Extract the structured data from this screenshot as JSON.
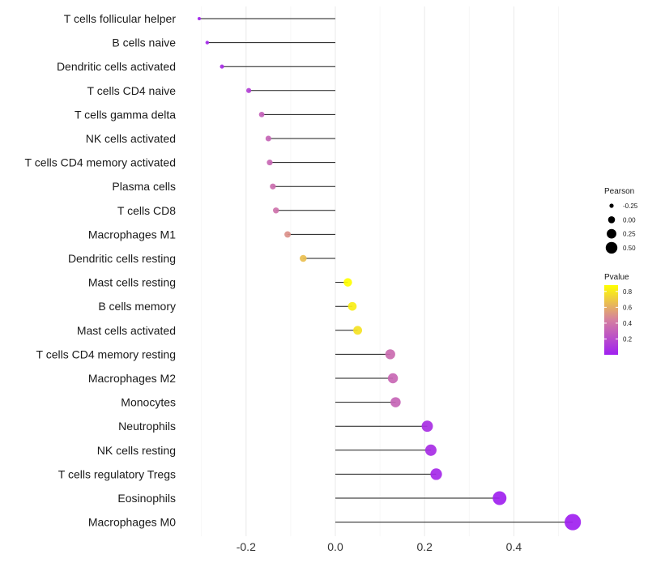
{
  "chart_data": {
    "type": "lollipop",
    "title": "",
    "xlabel": "",
    "ylabel": "",
    "xlim": [
      -0.31,
      0.535
    ],
    "x_ticks": [
      -0.2,
      0.0,
      0.2,
      0.4
    ],
    "x_tick_labels": [
      "-0.2",
      "0.0",
      "0.2",
      "0.4"
    ],
    "grid": true,
    "categories": [
      "T cells follicular helper",
      "B cells naive",
      "Dendritic cells activated",
      "T cells CD4 naive",
      "T cells gamma delta",
      "NK cells activated",
      "T cells CD4 memory activated",
      "Plasma cells",
      "T cells CD8",
      "Macrophages M1",
      "Dendritic cells resting",
      "Mast cells resting",
      "B cells memory",
      "Mast cells activated",
      "T cells CD4 memory resting",
      "Macrophages M2",
      "Monocytes",
      "Neutrophils",
      "NK cells resting",
      "T cells regulatory  Tregs ",
      "Eosinophils",
      "Macrophages M0"
    ],
    "pearson": [
      -0.305,
      -0.287,
      -0.254,
      -0.194,
      -0.165,
      -0.15,
      -0.147,
      -0.14,
      -0.133,
      -0.107,
      -0.072,
      0.028,
      0.038,
      0.05,
      0.123,
      0.129,
      0.135,
      0.206,
      0.214,
      0.226,
      0.368,
      0.532
    ],
    "pvalue": [
      0.02,
      0.04,
      0.06,
      0.15,
      0.3,
      0.32,
      0.33,
      0.36,
      0.38,
      0.5,
      0.66,
      0.88,
      0.82,
      0.78,
      0.35,
      0.33,
      0.32,
      0.07,
      0.06,
      0.04,
      0.005,
      0.001
    ],
    "legend": {
      "size_title": "Pearson",
      "size_labels": [
        "-0.25",
        "0.00",
        "0.25",
        "0.50"
      ],
      "size_values": [
        -0.25,
        0.0,
        0.25,
        0.5
      ],
      "color_title": "Pvalue",
      "color_labels": [
        "0.8",
        "0.6",
        "0.4",
        "0.2"
      ],
      "color_values": [
        0.8,
        0.6,
        0.4,
        0.2
      ],
      "color_range": [
        0.001,
        0.88
      ],
      "color_low": "#a020f0",
      "color_mid": "#d57fa0",
      "color_high": "#ffff00",
      "placement": "right"
    }
  }
}
